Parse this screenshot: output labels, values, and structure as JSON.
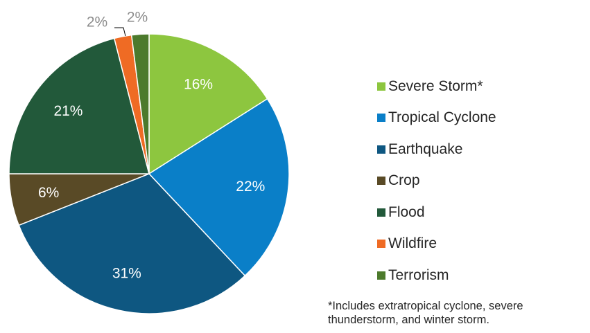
{
  "chart_data": {
    "type": "pie",
    "title": "",
    "slices": [
      {
        "label": "Severe Storm*",
        "value": 16,
        "data_label": "16%",
        "color": "#8dc63f"
      },
      {
        "label": "Tropical Cyclone",
        "value": 22,
        "data_label": "22%",
        "color": "#0a7fc8"
      },
      {
        "label": "Earthquake",
        "value": 31,
        "data_label": "31%",
        "color": "#0e5781"
      },
      {
        "label": "Crop",
        "value": 6,
        "data_label": "6%",
        "color": "#594a26"
      },
      {
        "label": "Flood",
        "value": 21,
        "data_label": "21%",
        "color": "#22593a"
      },
      {
        "label": "Wildfire",
        "value": 2,
        "data_label": "2%",
        "color": "#ef6b24"
      },
      {
        "label": "Terrorism",
        "value": 2,
        "data_label": "2%",
        "color": "#4c7a2c"
      }
    ],
    "legend_position": "right",
    "footnote_lines": [
      "*Includes extratropical cyclone, severe",
      "thunderstorm, and winter storm."
    ]
  }
}
